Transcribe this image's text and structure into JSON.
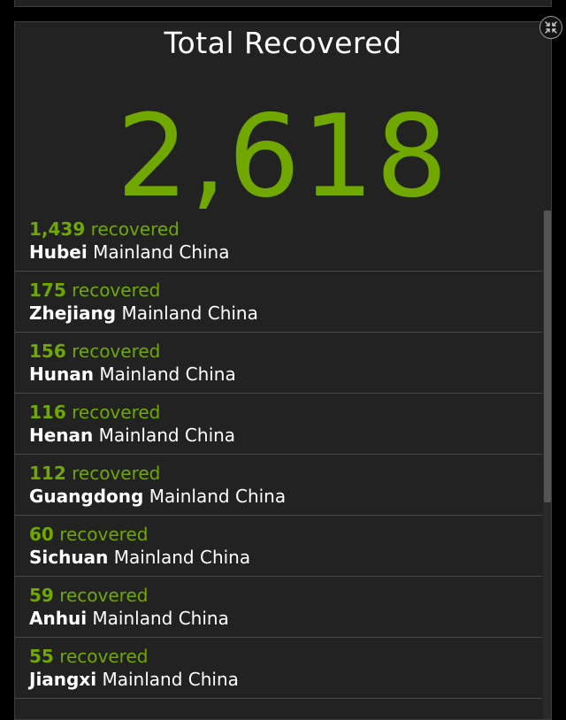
{
  "panel": {
    "title": "Total Recovered",
    "total_value": "2,618"
  },
  "items": [
    {
      "count": "1,439",
      "suffix": "recovered",
      "region": "Hubei",
      "country": "Mainland China"
    },
    {
      "count": "175",
      "suffix": "recovered",
      "region": "Zhejiang",
      "country": "Mainland China"
    },
    {
      "count": "156",
      "suffix": "recovered",
      "region": "Hunan",
      "country": "Mainland China"
    },
    {
      "count": "116",
      "suffix": "recovered",
      "region": "Henan",
      "country": "Mainland China"
    },
    {
      "count": "112",
      "suffix": "recovered",
      "region": "Guangdong",
      "country": "Mainland China"
    },
    {
      "count": "60",
      "suffix": "recovered",
      "region": "Sichuan",
      "country": "Mainland China"
    },
    {
      "count": "59",
      "suffix": "recovered",
      "region": "Anhui",
      "country": "Mainland China"
    },
    {
      "count": "55",
      "suffix": "recovered",
      "region": "Jiangxi",
      "country": "Mainland China"
    }
  ],
  "icons": {
    "collapse": "collapse-icon"
  },
  "colors": {
    "accent": "#70a800",
    "panel_bg": "#222222",
    "page_bg": "#000000"
  }
}
